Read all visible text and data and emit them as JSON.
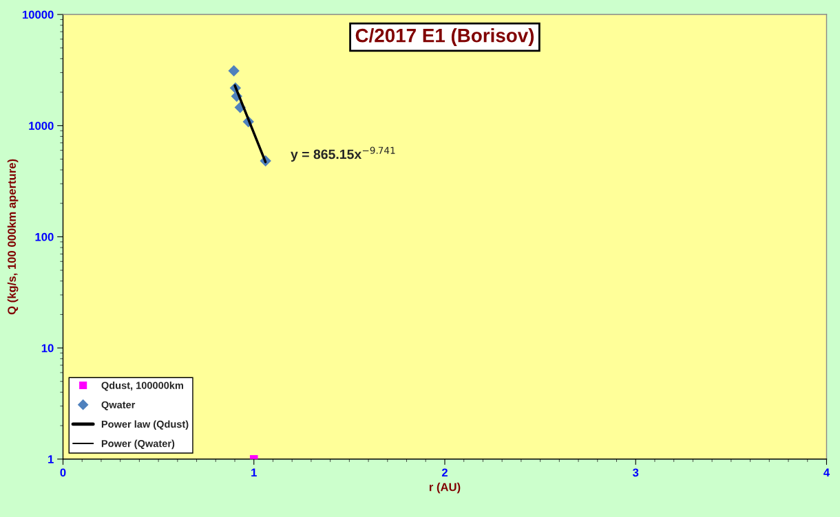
{
  "chart_data": {
    "type": "scatter",
    "title": "C/2017 E1 (Borisov)",
    "xlabel": "r (AU)",
    "ylabel": "Q (kg/s, 100 000km aperture)",
    "log": "y",
    "xlim": [
      0,
      4
    ],
    "ylim": [
      1,
      10000
    ],
    "xticks": [
      0,
      1,
      2,
      3,
      4
    ],
    "yticks": [
      1,
      10,
      100,
      1000,
      10000
    ],
    "grid": false,
    "legend": "bottom left",
    "annotations": [
      "y = 865.15x$^{−9.741}$"
    ],
    "series": [
      {
        "name": "Qdust, 100000km",
        "marker": "square",
        "color": "#ff00ff",
        "x": [
          1.0
        ],
        "values": [
          1
        ]
      },
      {
        "name": "Qwater",
        "marker": "diamond",
        "color": "#4f81bd",
        "x": [
          0.895,
          0.903,
          0.91,
          0.928,
          0.971,
          1.061
        ],
        "values": [
          3110,
          2180,
          1840,
          1460,
          1085,
          482
        ]
      },
      {
        "name": "Power law (Qdust)",
        "type": "line",
        "marker": "none",
        "line_style": "solid",
        "color": "#000000"
      },
      {
        "name": "Power (Qwater)",
        "type": "line",
        "marker": "none",
        "line_style": "solid",
        "color": "#000000",
        "x": [
          0.9,
          1.061
        ],
        "values": [
          2300,
          470
        ]
      }
    ]
  }
}
